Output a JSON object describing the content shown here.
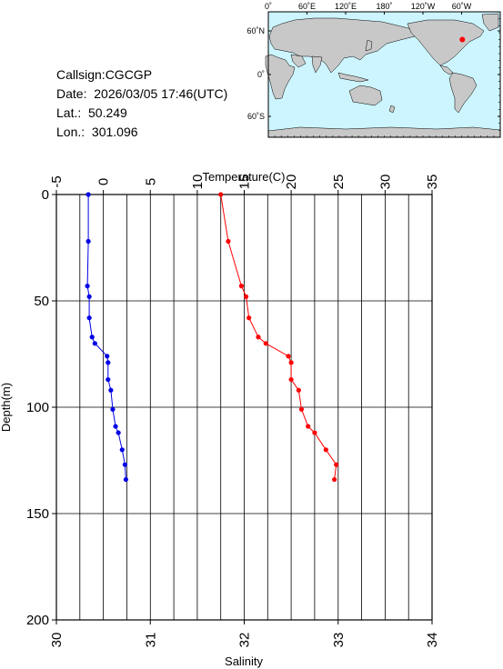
{
  "station": {
    "callsign": "Callsign:CGCGP",
    "date": "Date:  2026/03/05 17:46(UTC)",
    "lat": "Lat.:  50.249",
    "lon": "Lon.:  301.096"
  },
  "map": {
    "lon_labels": [
      "0˚",
      "60˚E",
      "120˚E",
      "180˚",
      "120˚W",
      "60˚W"
    ],
    "lat_labels": [
      "60˚N",
      "0˚",
      "60˚S"
    ],
    "ocean_color": "#ccf5ff",
    "land_color": "#c8c8c8",
    "marker_color": "#ff0000",
    "marker_lon": 301.096,
    "marker_lat": 50.249
  },
  "chart_data": {
    "type": "line",
    "depth_axis": {
      "label": "Depth(m)",
      "range": [
        0,
        200
      ],
      "ticks": [
        0,
        50,
        100,
        150,
        200
      ],
      "inverted": true
    },
    "temperature_axis": {
      "label": "Temperature(C)",
      "range": [
        -5,
        35
      ],
      "ticks": [
        -5,
        0,
        5,
        10,
        15,
        20,
        25,
        30,
        35
      ]
    },
    "salinity_axis": {
      "label": "Salinity",
      "range": [
        30,
        34
      ],
      "ticks": [
        30,
        31,
        32,
        33,
        34
      ]
    },
    "grid": true,
    "series": [
      {
        "axis": "temperature",
        "color": "#ff0000",
        "points": [
          {
            "depth": 0,
            "value": 12.5
          },
          {
            "depth": 22,
            "value": 13.3
          },
          {
            "depth": 43,
            "value": 14.7
          },
          {
            "depth": 48,
            "value": 15.2
          },
          {
            "depth": 58,
            "value": 15.5
          },
          {
            "depth": 67,
            "value": 16.5
          },
          {
            "depth": 70,
            "value": 17.3
          },
          {
            "depth": 76,
            "value": 19.7
          },
          {
            "depth": 79,
            "value": 20.0
          },
          {
            "depth": 87,
            "value": 20.0
          },
          {
            "depth": 92,
            "value": 20.8
          },
          {
            "depth": 101,
            "value": 21.1
          },
          {
            "depth": 109,
            "value": 21.8
          },
          {
            "depth": 112,
            "value": 22.5
          },
          {
            "depth": 120,
            "value": 23.7
          },
          {
            "depth": 127,
            "value": 24.8
          },
          {
            "depth": 134,
            "value": 24.6
          }
        ]
      },
      {
        "axis": "salinity",
        "color": "#0000e6",
        "points": [
          {
            "depth": 0,
            "value": 30.34
          },
          {
            "depth": 22,
            "value": 30.34
          },
          {
            "depth": 43,
            "value": 30.33
          },
          {
            "depth": 48,
            "value": 30.35
          },
          {
            "depth": 58,
            "value": 30.35
          },
          {
            "depth": 67,
            "value": 30.38
          },
          {
            "depth": 70,
            "value": 30.41
          },
          {
            "depth": 76,
            "value": 30.54
          },
          {
            "depth": 79,
            "value": 30.55
          },
          {
            "depth": 87,
            "value": 30.55
          },
          {
            "depth": 92,
            "value": 30.58
          },
          {
            "depth": 101,
            "value": 30.6
          },
          {
            "depth": 109,
            "value": 30.63
          },
          {
            "depth": 112,
            "value": 30.66
          },
          {
            "depth": 120,
            "value": 30.7
          },
          {
            "depth": 127,
            "value": 30.73
          },
          {
            "depth": 134,
            "value": 30.74
          }
        ]
      }
    ]
  }
}
